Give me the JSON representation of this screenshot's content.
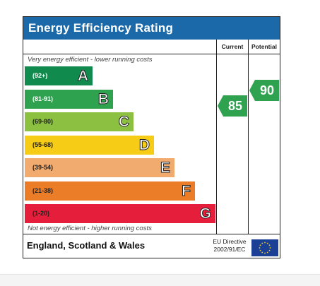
{
  "title": "Energy Efficiency Rating",
  "columns": {
    "current": "Current",
    "potential": "Potential"
  },
  "captions": {
    "top": "Very energy efficient - lower running costs",
    "bottom": "Not energy efficient - higher running costs"
  },
  "bands": [
    {
      "letter": "A",
      "range": "(92+)",
      "color": "#108a4d",
      "text_color": "#ffffff"
    },
    {
      "letter": "B",
      "range": "(81-91)",
      "color": "#2ea24f",
      "text_color": "#ffffff"
    },
    {
      "letter": "C",
      "range": "(69-80)",
      "color": "#8cc041",
      "text_color": "#222222"
    },
    {
      "letter": "D",
      "range": "(55-68)",
      "color": "#f6cc17",
      "text_color": "#222222"
    },
    {
      "letter": "E",
      "range": "(39-54)",
      "color": "#f1ab6e",
      "text_color": "#222222"
    },
    {
      "letter": "F",
      "range": "(21-38)",
      "color": "#ec7d28",
      "text_color": "#222222"
    },
    {
      "letter": "G",
      "range": "(1-20)",
      "color": "#e41e3b",
      "text_color": "#222222"
    }
  ],
  "current_rating": {
    "value": "85",
    "band": "B",
    "color": "#2ea24f"
  },
  "potential_rating": {
    "value": "90",
    "band": "B",
    "color": "#2ea24f"
  },
  "footer": {
    "region": "England, Scotland & Wales",
    "directive_line1": "EU Directive",
    "directive_line2": "2002/91/EC"
  }
}
